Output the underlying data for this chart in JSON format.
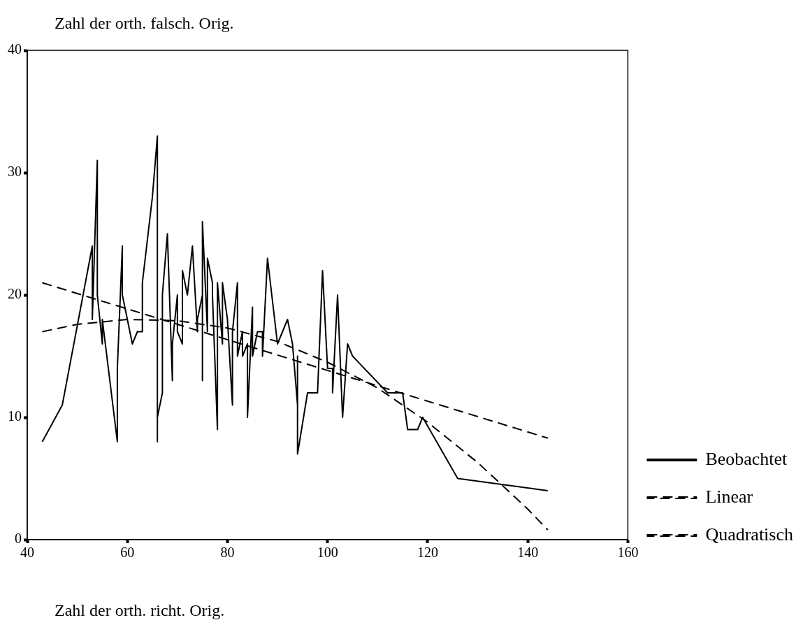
{
  "chart_data": {
    "type": "line",
    "ylabel": "Zahl der orth. falsch. Orig.",
    "xlabel": "Zahl der orth. richt. Orig.",
    "xlim": [
      40,
      160
    ],
    "xticks": [
      40,
      60,
      80,
      100,
      120,
      140,
      160
    ],
    "ylim": [
      0,
      40
    ],
    "yticks": [
      0,
      10,
      20,
      30,
      40
    ],
    "grid": false,
    "legend": "right",
    "marker": "none",
    "series": [
      {
        "name": "Beobachtet",
        "color": "#000000",
        "line_style": "solid",
        "x": [
          43,
          47,
          53,
          53,
          54,
          54,
          55,
          55,
          58,
          58,
          59,
          59,
          61,
          62,
          63,
          63,
          65,
          66,
          66,
          66,
          67,
          67,
          68,
          69,
          69,
          70,
          70,
          71,
          71,
          72,
          73,
          74,
          74,
          75,
          75,
          75,
          76,
          76,
          77,
          77,
          78,
          78,
          79,
          79,
          80,
          81,
          81,
          82,
          82,
          83,
          83,
          84,
          84,
          85,
          85,
          86,
          87,
          87,
          88,
          90,
          92,
          93,
          94,
          94,
          94,
          96,
          98,
          99,
          100,
          101,
          101,
          102,
          103,
          104,
          105,
          112,
          114,
          115,
          116,
          118,
          119,
          126,
          144
        ],
        "values": [
          8,
          11,
          24,
          18,
          31,
          20,
          16,
          18,
          8,
          14,
          24,
          20,
          16,
          17,
          17,
          21,
          28,
          33,
          8,
          10,
          12,
          20,
          25,
          13,
          16,
          20,
          17,
          16,
          22,
          20,
          24,
          17,
          18,
          20,
          13,
          26,
          17,
          23,
          21,
          20,
          9,
          21,
          16,
          21,
          18,
          11,
          17,
          21,
          15,
          17,
          15,
          16,
          10,
          19,
          15,
          17,
          17,
          15,
          23,
          16,
          18,
          16,
          11,
          15,
          7,
          12,
          12,
          22,
          14,
          14,
          12,
          20,
          10,
          16,
          15,
          12,
          12,
          12,
          9,
          9,
          10,
          5,
          4
        ]
      },
      {
        "name": "Linear",
        "color": "#000000",
        "line_style": "dashed",
        "x": [
          43,
          144
        ],
        "values": [
          21,
          8.3
        ]
      },
      {
        "name": "Quadratisch",
        "color": "#000000",
        "line_style": "dashed",
        "x": [
          43,
          50,
          60,
          70,
          80,
          90,
          100,
          110,
          120,
          130,
          140,
          144
        ],
        "values": [
          17,
          17.6,
          18,
          17.9,
          17.3,
          16.2,
          14.5,
          12.4,
          9.6,
          6.3,
          2.5,
          0.8
        ]
      }
    ]
  }
}
